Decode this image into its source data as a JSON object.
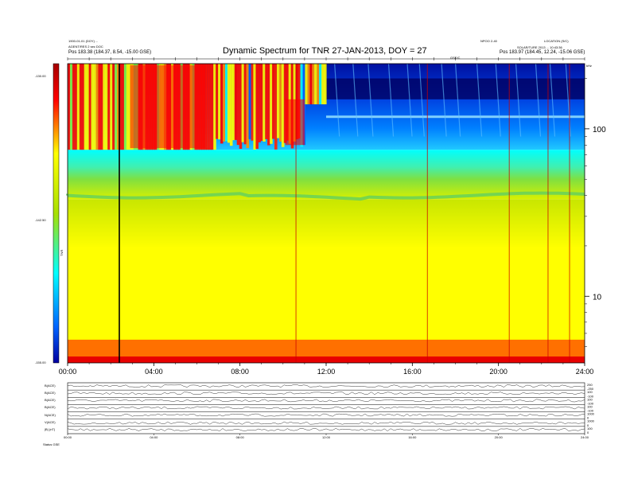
{
  "header": {
    "title": "Dynamic Spectrum for TNR 27-JAN-2013, DOY = 27",
    "left_info_1": "1900-01-01 (DOY) ...",
    "left_info_2": "AGENT/RES 2 sec DOC",
    "left_position": "Pos   183.38 (184.37, 8.54, -15.00 GSE)",
    "center_small": "GSE/C",
    "right_info_1": "NPOO 2-40",
    "right_info_2": "LOCATION (S/C)",
    "right_info_3": "SOLAR/TURE 2013 ... 10:43:36",
    "right_position": "Pos   183.97 (184.45, 12.24, -15.06 GSE)",
    "right_corner": "kHz"
  },
  "colorbar": {
    "axis_label": "TNR",
    "tick_labels": [
      "-130.00",
      "-142.50",
      "-155.00"
    ],
    "stops": [
      "#a50000",
      "#ff0000",
      "#ff8c00",
      "#ffff00",
      "#a8e000",
      "#00ffff",
      "#0064ff",
      "#0000a0"
    ]
  },
  "chart_data": {
    "type": "heatmap",
    "title": "Dynamic Spectrum for TNR 27-JAN-2013, DOY = 27",
    "x_ticks": [
      "00:00",
      "04:00",
      "08:00",
      "12:00",
      "16:00",
      "20:00",
      "24:00"
    ],
    "x_range_hours": [
      0,
      24
    ],
    "y_scale": "log",
    "y_unit": "kHz",
    "y_ticks": [
      100,
      10
    ],
    "y_range_khz": [
      4,
      245
    ],
    "color_range": [
      -155.0,
      -130.0
    ],
    "bands": [
      {
        "freq_range_khz": [
          75,
          245
        ],
        "level": "intense variable emission 00:00-12:00, blue quiet after 12:00"
      },
      {
        "freq_range_khz": [
          38,
          75
        ],
        "level": -140.0
      },
      {
        "freq_range_khz": [
          15,
          38
        ],
        "level": -147.0
      },
      {
        "freq_range_khz": [
          5.5,
          15
        ],
        "level": -150.0
      },
      {
        "freq_range_khz": [
          4,
          5.5
        ],
        "level": -131.0
      }
    ],
    "vertical_features_hours": [
      2.4,
      10.6,
      16.7,
      20.5,
      22.3,
      23.3
    ]
  },
  "bottom_panels": {
    "labels": [
      "B(ACE)",
      "B(ACE)",
      "B(ACE)",
      "B(ACE)",
      "N(ACE)",
      "V(ACE)",
      "|B| (nT)"
    ],
    "right_scales": [
      [
        "250",
        "-250"
      ],
      [
        "100",
        "-100"
      ],
      [
        "100",
        "-100"
      ],
      [
        "100",
        "-100"
      ],
      [
        "1000",
        "0"
      ],
      [
        "1000",
        "0"
      ],
      [
        "100",
        "0"
      ]
    ],
    "x_ticks": [
      "00:00",
      "04:00",
      "08:00",
      "12:00",
      "16:00",
      "20:00",
      "24:00"
    ],
    "footer_label": "Status  GSE"
  }
}
